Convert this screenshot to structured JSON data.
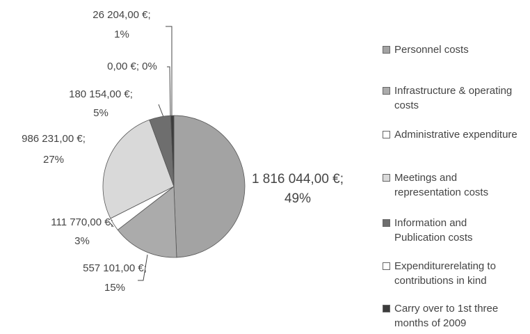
{
  "chart_data": {
    "type": "pie",
    "categories": [
      "Personnel costs",
      "Infrastructure & operating costs",
      "Administrative expenditure",
      "Meetings and representation costs",
      "Information and Publication costs",
      "Expenditurerelating to contributions in kind",
      "Carry over to 1st three months of 2009"
    ],
    "values": [
      1816044,
      557101,
      111770,
      986231,
      180154,
      0,
      26204
    ],
    "value_labels": [
      [
        "1 816 044,00 €;",
        "49%"
      ],
      [
        "557 101,00 €;",
        "15%"
      ],
      [
        "111 770,00 €;",
        "3%"
      ],
      [
        "986 231,00 €;",
        "27%"
      ],
      [
        "180 154,00 €;",
        "5%"
      ],
      [
        "0,00 €; 0%"
      ],
      [
        "26 204,00 €;",
        "1%"
      ]
    ],
    "colors": [
      "#a3a3a3",
      "#ababab",
      "#ffffff",
      "#d9d9d9",
      "#6e6e6e",
      "#ffffff",
      "#3c3c3c"
    ],
    "legend": "right"
  }
}
